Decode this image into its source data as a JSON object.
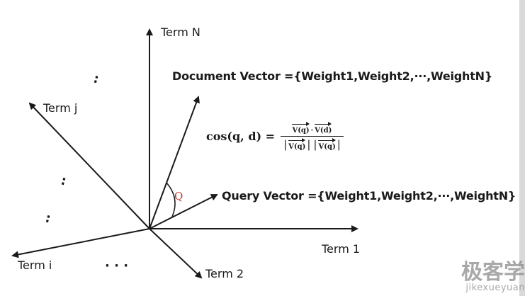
{
  "axes": {
    "term_n": "Term N",
    "term_j": "Term j",
    "term_1": "Term 1",
    "term_i": "Term i",
    "term_2": "Term 2"
  },
  "vectors": {
    "document": "Document Vector ={Weight1,Weight2,···,WeightN}",
    "query": "Query Vector ={Weight1,Weight2,···,WeightN}"
  },
  "angle": "Q",
  "formula": {
    "lhs": "cos(q, d)  =",
    "num_left": "V(q)",
    "num_dot": "·",
    "num_right": "V(d)",
    "den_left": "V(q)",
    "den_right": "V(q)",
    "pipe": "|"
  },
  "ellipsis": {
    "vertical": ":",
    "horizontal": "· · ·"
  },
  "watermark": {
    "cn": "极客学",
    "en": "jikexueyuan"
  },
  "colors": {
    "lines": "#1a1a1a",
    "angle_label": "#c0392b",
    "watermark": "#8c8c8c"
  }
}
